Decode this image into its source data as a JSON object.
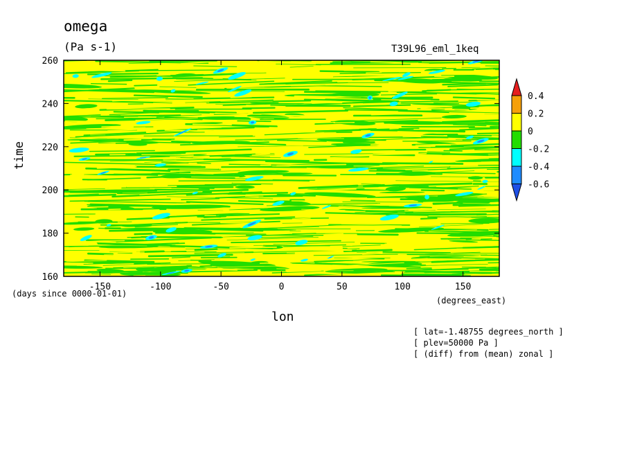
{
  "chart_data": {
    "type": "heatmap",
    "title": "omega",
    "units": "(Pa s-1)",
    "run_label": "T39L96_eml_1keq",
    "xlabel": "lon",
    "x_units": "(degrees_east)",
    "ylabel": "time",
    "y_units": "(days since 0000-01-01)",
    "xlim": [
      -180,
      180
    ],
    "ylim": [
      160,
      260
    ],
    "x_ticks": [
      -150,
      -100,
      -50,
      0,
      50,
      100,
      150
    ],
    "y_ticks": [
      160,
      180,
      200,
      220,
      240,
      260
    ],
    "x_tick_labels": [
      "-150",
      "-100",
      "-50",
      "0",
      "50",
      "100",
      "150"
    ],
    "y_tick_labels": [
      "160",
      "180",
      "200",
      "220",
      "240",
      "260"
    ],
    "colorbar": {
      "levels": [
        0.4,
        0.2,
        0,
        -0.2,
        -0.4,
        -0.6
      ],
      "labels": [
        "0.4",
        "0.2",
        "0",
        "-0.2",
        "-0.4",
        "-0.6"
      ],
      "colors": [
        "#e61e1e",
        "#f5a00a",
        "#ffff00",
        "#22dd00",
        "#00ffff",
        "#1e8cff",
        "#1e50e6"
      ],
      "placement": "right"
    },
    "notes": [
      "[ lat=-1.48755 degrees_north ]",
      "[ plev=50000 Pa ]",
      "[ (diff) from (mean) zonal ]"
    ],
    "field_pattern": "zonal streaks alternating 0 to 0.2 and -0.2 to 0, with scattered -0.4 patches"
  }
}
